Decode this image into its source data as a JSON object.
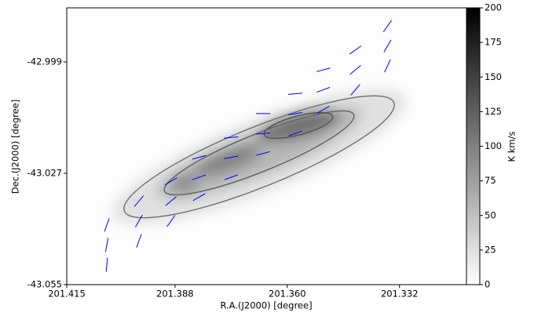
{
  "chart_data": {
    "type": "image",
    "xlabel": "R.A.(J2000) [degree]",
    "ylabel": "Dec.(J2000) [degree]",
    "xlim": [
      201.415,
      201.3153
    ],
    "ylim": [
      -43.055,
      -42.9854
    ],
    "xticks": [
      201.415,
      201.388,
      {
        "value": 201.36,
        "label": "201.360"
      },
      201.332
    ],
    "yticks": [
      -42.999,
      -43.027,
      -43.055
    ],
    "colorbar": {
      "label": "K km/s",
      "lim": [
        0,
        200
      ],
      "ticks": [
        0,
        25,
        50,
        75,
        100,
        125,
        150,
        175,
        200
      ]
    },
    "vectors": {
      "color": "#0000ff",
      "ra": [
        201.405,
        201.397,
        201.389,
        201.382,
        201.374,
        201.366,
        201.358,
        201.351,
        201.343,
        201.335,
        201.405,
        201.397,
        201.389,
        201.382,
        201.374,
        201.366,
        201.358,
        201.351,
        201.343,
        201.335,
        201.405,
        201.397,
        201.389,
        201.382,
        201.374,
        201.366,
        201.358,
        201.351,
        201.343,
        201.335
      ],
      "dec": [
        -43.045,
        -43.039,
        -43.034,
        -43.028,
        -43.023,
        -43.017,
        -43.012,
        -43.006,
        -43.001,
        -42.995,
        -43.05,
        -43.044,
        -43.039,
        -43.033,
        -43.028,
        -43.022,
        -43.017,
        -43.011,
        -43.006,
        -43.0,
        -43.04,
        -43.034,
        -43.029,
        -43.023,
        -43.018,
        -43.012,
        -43.007,
        -43.001,
        -42.996,
        -42.99
      ],
      "angle": [
        80,
        60,
        40,
        20,
        10,
        5,
        10,
        20,
        40,
        60,
        85,
        70,
        55,
        30,
        20,
        15,
        20,
        30,
        50,
        65,
        70,
        50,
        30,
        15,
        5,
        0,
        5,
        15,
        35,
        55
      ]
    }
  }
}
